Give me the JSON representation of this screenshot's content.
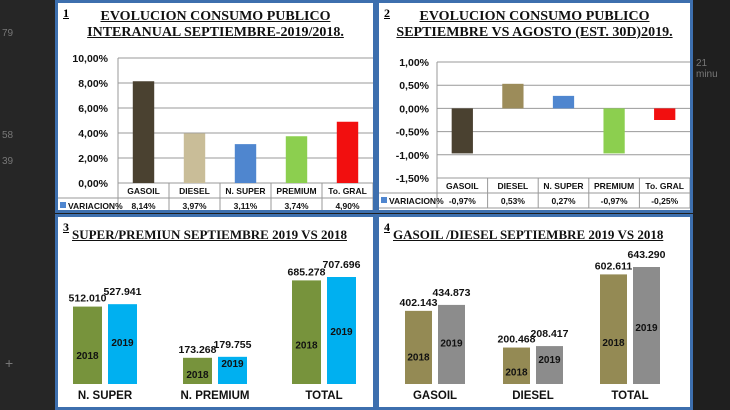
{
  "background_text": [
    "79",
    "58",
    "39",
    "21 minu",
    "+"
  ],
  "chart_data": [
    {
      "type": "bar",
      "number": "1",
      "title": [
        "EVOLUCION CONSUMO PUBLICO",
        "INTERANUAL SEPTIEMBRE-2019/2018."
      ],
      "categories": [
        "GASOIL",
        "DIESEL",
        "N. SUPER",
        "PREMIUM",
        "To. GRAL"
      ],
      "series": [
        {
          "name": "VARIACION%",
          "values": [
            8.14,
            3.97,
            3.11,
            3.74,
            4.9
          ],
          "labels": [
            "8,14%",
            "3,97%",
            "3,11%",
            "3,74%",
            "4,90%"
          ]
        }
      ],
      "colors": [
        "#4a4130",
        "#c9bd98",
        "#4f86cf",
        "#8ccf4f",
        "#f20f0f"
      ],
      "yticks": [
        "10,00%",
        "8,00%",
        "6,00%",
        "4,00%",
        "2,00%",
        "0,00%"
      ],
      "ylim": [
        0,
        10
      ],
      "grid": true,
      "legend": "bottom-table"
    },
    {
      "type": "bar",
      "number": "2",
      "title": [
        "EVOLUCION CONSUMO PUBLICO",
        "SEPTIEMBRE VS AGOSTO (EST. 30D)2019."
      ],
      "categories": [
        "GASOIL",
        "DIESEL",
        "N. SUPER",
        "PREMIUM",
        "To. GRAL"
      ],
      "series": [
        {
          "name": "VARIACION%",
          "values": [
            -0.97,
            0.53,
            0.27,
            -0.97,
            -0.25
          ],
          "labels": [
            "-0,97%",
            "0,53%",
            "0,27%",
            "-0,97%",
            "-0,25%"
          ]
        }
      ],
      "colors": [
        "#4a4130",
        "#9c8c5a",
        "#4f86cf",
        "#8ccf4f",
        "#f20f0f"
      ],
      "yticks": [
        "1,00%",
        "0,50%",
        "0,00%",
        "-0,50%",
        "-1,00%",
        "-1,50%"
      ],
      "ylim": [
        -1.5,
        1
      ],
      "grid": true,
      "legend": "bottom-table"
    },
    {
      "type": "bar",
      "number": "3",
      "title": [
        "SUPER/PREMIUN SEPTIEMBRE 2019 VS 2018"
      ],
      "categories": [
        "N. SUPER",
        "N. PREMIUM",
        "TOTAL"
      ],
      "series": [
        {
          "name": "2018",
          "values": [
            512010,
            173268,
            685278
          ],
          "labels": [
            "512.010",
            "173.268",
            "685.278"
          ],
          "color": "#77933c"
        },
        {
          "name": "2019",
          "values": [
            527941,
            179755,
            707696
          ],
          "labels": [
            "527.941",
            "179.755",
            "707.696"
          ],
          "color": "#00b0f0"
        }
      ]
    },
    {
      "type": "bar",
      "number": "4",
      "title": [
        "GASOIL /DIESEL SEPTIEMBRE 2019 VS 2018"
      ],
      "categories": [
        "GASOIL",
        "DIESEL",
        "TOTAL"
      ],
      "series": [
        {
          "name": "2018",
          "values": [
            402143,
            200468,
            602611
          ],
          "labels": [
            "402.143",
            "200.468",
            "602.611"
          ],
          "color": "#948a54"
        },
        {
          "name": "2019",
          "values": [
            434873,
            208417,
            643290
          ],
          "labels": [
            "434.873",
            "208.417",
            "643.290"
          ],
          "color": "#8c8c8c"
        }
      ]
    }
  ]
}
